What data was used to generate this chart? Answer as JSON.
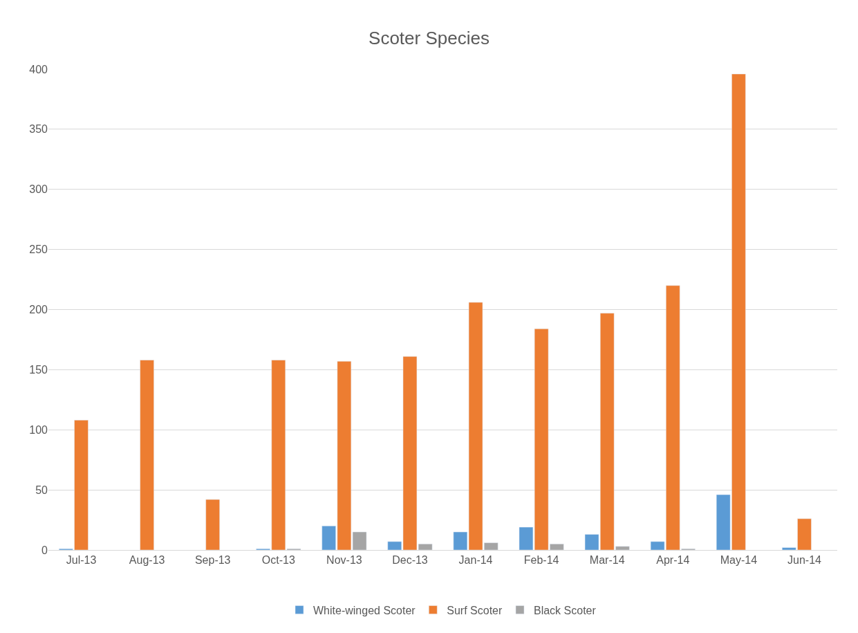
{
  "chart_data": {
    "type": "bar",
    "title": "Scoter Species",
    "categories": [
      "Jul-13",
      "Aug-13",
      "Sep-13",
      "Oct-13",
      "Nov-13",
      "Dec-13",
      "Jan-14",
      "Feb-14",
      "Mar-14",
      "Apr-14",
      "May-14",
      "Jun-14"
    ],
    "series": [
      {
        "name": "White-winged Scoter",
        "color": "#5b9bd5",
        "values": [
          1,
          null,
          null,
          1,
          20,
          7,
          15,
          19,
          13,
          7,
          46,
          2
        ]
      },
      {
        "name": "Surf Scoter",
        "color": "#ed7d31",
        "values": [
          108,
          158,
          42,
          158,
          157,
          161,
          206,
          184,
          197,
          220,
          396,
          26
        ]
      },
      {
        "name": "Black Scoter",
        "color": "#a5a5a5",
        "values": [
          null,
          null,
          null,
          1,
          15,
          5,
          6,
          5,
          3,
          1,
          null,
          null
        ]
      }
    ],
    "ylim": [
      0,
      400
    ],
    "yticks": [
      0,
      50,
      100,
      150,
      200,
      250,
      300,
      350,
      400
    ],
    "grid": "y",
    "legend": "bottom"
  }
}
